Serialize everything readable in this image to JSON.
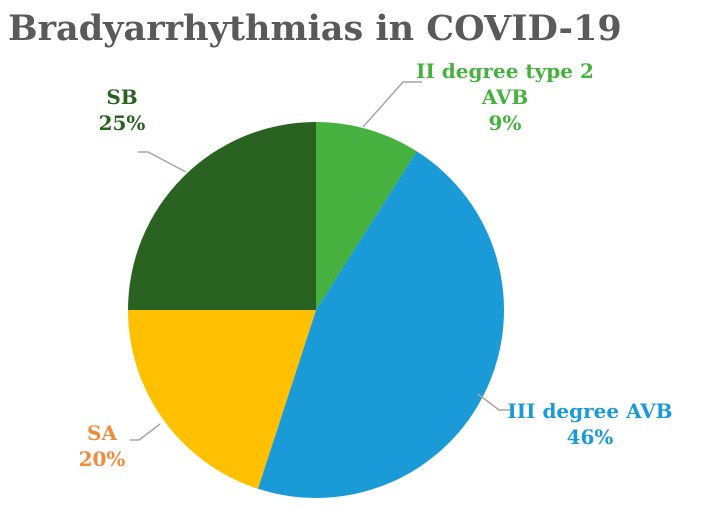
{
  "chart_data": {
    "type": "pie",
    "title": "Bradyarrhythmias in COVID-19",
    "slices": [
      {
        "label": [
          "II degree type 2",
          "AVB"
        ],
        "value": 9,
        "value_label": "9%",
        "color": "#47b13f",
        "label_color": "#47b13f"
      },
      {
        "label": [
          "III degree AVB"
        ],
        "value": 46,
        "value_label": "46%",
        "color": "#1b9ad8",
        "label_color": "#1b9ad8"
      },
      {
        "label": [
          "SA"
        ],
        "value": 20,
        "value_label": "20%",
        "color": "#fec000",
        "label_color": "#f08a3c"
      },
      {
        "label": [
          "SB"
        ],
        "value": 25,
        "value_label": "25%",
        "color": "#2a6321",
        "label_color": "#2a6321"
      }
    ],
    "start": "top",
    "direction": "clockwise",
    "legend": "none"
  }
}
